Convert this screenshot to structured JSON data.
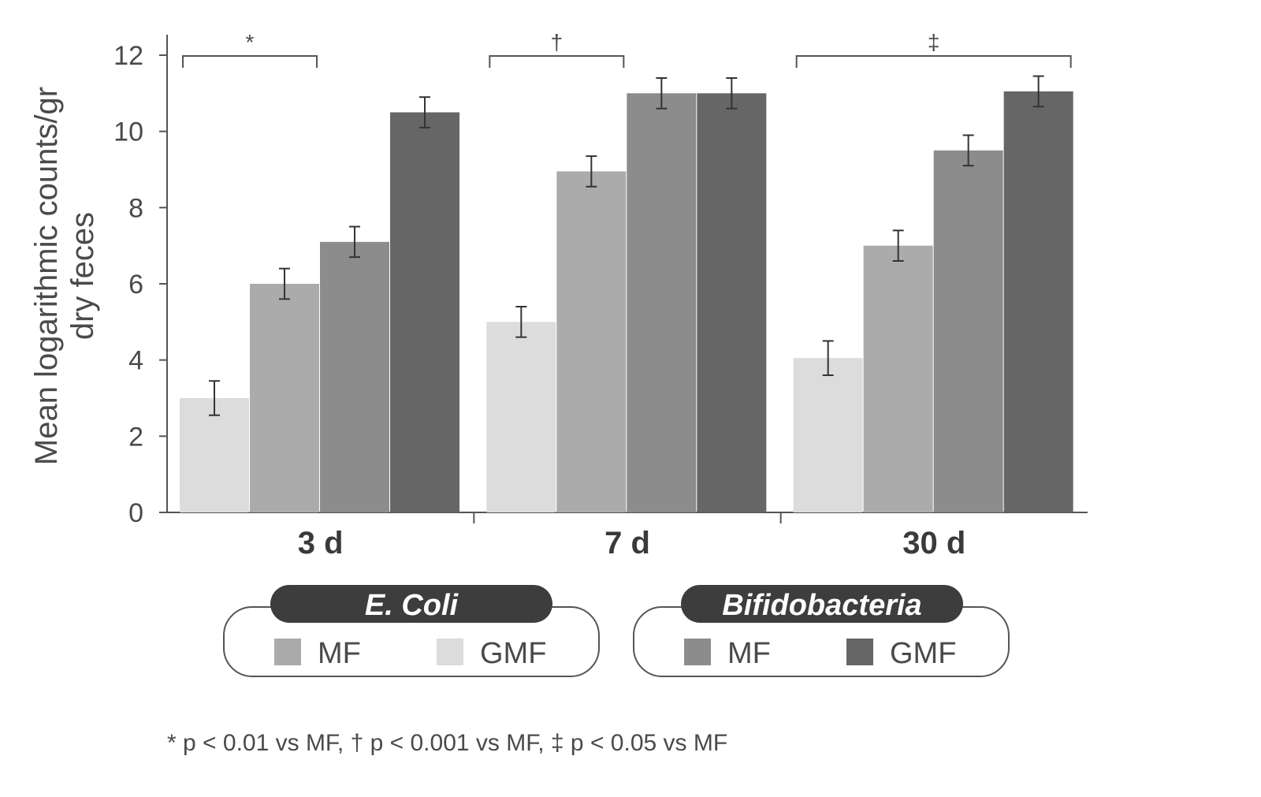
{
  "chart_data": {
    "type": "bar",
    "ylabel_lines": [
      "Mean logarithmic counts/gr",
      "dry feces"
    ],
    "ylim": [
      0,
      12
    ],
    "yticks": [
      0,
      2,
      4,
      6,
      8,
      10,
      12
    ],
    "categories": [
      "3 d",
      "7 d",
      "30 d"
    ],
    "series": [
      {
        "group": "E. Coli",
        "name": "GMF",
        "color": "#dcdcdc",
        "values": [
          3.0,
          5.0,
          4.05
        ],
        "errors": [
          0.45,
          0.4,
          0.45
        ]
      },
      {
        "group": "E. Coli",
        "name": "MF",
        "color": "#ababab",
        "values": [
          6.0,
          8.95,
          7.0
        ],
        "errors": [
          0.4,
          0.4,
          0.4
        ]
      },
      {
        "group": "Bifidobacteria",
        "name": "MF",
        "color": "#8c8c8c",
        "values": [
          7.1,
          11.0,
          9.5
        ],
        "errors": [
          0.4,
          0.4,
          0.4
        ]
      },
      {
        "group": "Bifidobacteria",
        "name": "GMF",
        "color": "#666666",
        "values": [
          10.5,
          11.0,
          11.05
        ],
        "errors": [
          0.4,
          0.4,
          0.4
        ]
      }
    ],
    "significance": [
      "*",
      "†",
      "‡"
    ],
    "grid": false
  },
  "legend": {
    "groups": [
      {
        "title": "E. Coli",
        "items": [
          {
            "label": "MF",
            "color": "#ababab"
          },
          {
            "label": "GMF",
            "color": "#dcdcdc"
          }
        ]
      },
      {
        "title": "Bifidobacteria",
        "items": [
          {
            "label": "MF",
            "color": "#8c8c8c"
          },
          {
            "label": "GMF",
            "color": "#666666"
          }
        ]
      }
    ]
  },
  "footnote": "* p < 0.01 vs MF, † p < 0.001 vs MF, ‡ p < 0.05 vs MF"
}
